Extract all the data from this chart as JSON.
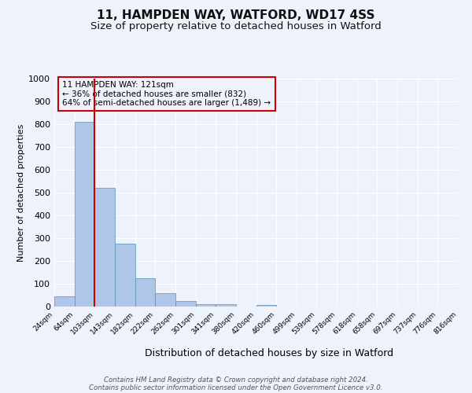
{
  "title": "11, HAMPDEN WAY, WATFORD, WD17 4SS",
  "subtitle": "Size of property relative to detached houses in Watford",
  "xlabel": "Distribution of detached houses by size in Watford",
  "ylabel": "Number of detached properties",
  "bar_values": [
    46,
    810,
    520,
    275,
    125,
    58,
    25,
    12,
    12,
    0,
    8,
    0,
    0,
    0,
    0,
    0,
    0,
    0,
    0,
    0
  ],
  "bar_labels": [
    "24sqm",
    "64sqm",
    "103sqm",
    "143sqm",
    "182sqm",
    "222sqm",
    "262sqm",
    "301sqm",
    "341sqm",
    "380sqm",
    "420sqm",
    "460sqm",
    "499sqm",
    "539sqm",
    "578sqm",
    "618sqm",
    "658sqm",
    "697sqm",
    "737sqm",
    "776sqm",
    "816sqm"
  ],
  "bar_color": "#aec6e8",
  "bar_edge_color": "#5b8db8",
  "vline_color": "#cc0000",
  "annotation_text": "11 HAMPDEN WAY: 121sqm\n← 36% of detached houses are smaller (832)\n64% of semi-detached houses are larger (1,489) →",
  "annotation_box_color": "#cc0000",
  "ylim": [
    0,
    1000
  ],
  "yticks": [
    0,
    100,
    200,
    300,
    400,
    500,
    600,
    700,
    800,
    900,
    1000
  ],
  "background_color": "#eef2fb",
  "grid_color": "#ffffff",
  "footnote1": "Contains HM Land Registry data © Crown copyright and database right 2024.",
  "footnote2": "Contains public sector information licensed under the Open Government Licence v3.0.",
  "title_fontsize": 11,
  "subtitle_fontsize": 9.5,
  "xlabel_fontsize": 9,
  "ylabel_fontsize": 8
}
